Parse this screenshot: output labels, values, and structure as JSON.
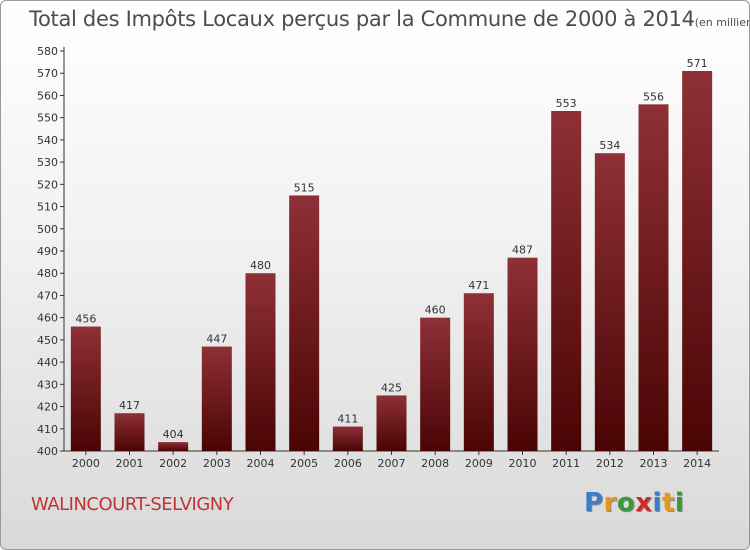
{
  "title": "Total des Impôts Locaux perçus par la Commune de 2000 à 2014",
  "title_unit": "(en milliers d'€)",
  "commune": "WALINCOURT-SELVIGNY",
  "logo": {
    "letters": [
      "P",
      "r",
      "o",
      "x",
      "i",
      "t",
      "i"
    ],
    "colors": [
      "#3a7fc1",
      "#e39a1c",
      "#3a9a3a",
      "#cc2b2b",
      "#3a7fc1",
      "#e39a1c",
      "#3a9a3a"
    ]
  },
  "chart_data": {
    "type": "bar",
    "title": "Total des Impôts Locaux perçus par la Commune de 2000 à 2014",
    "categories": [
      "2000",
      "2001",
      "2002",
      "2003",
      "2004",
      "2005",
      "2006",
      "2007",
      "2008",
      "2009",
      "2010",
      "2011",
      "2012",
      "2013",
      "2014"
    ],
    "values": [
      456,
      417,
      404,
      447,
      480,
      515,
      411,
      425,
      460,
      471,
      487,
      553,
      534,
      556,
      571
    ],
    "ylim": [
      400,
      580
    ],
    "yticks": [
      400,
      410,
      420,
      430,
      440,
      450,
      460,
      470,
      480,
      490,
      500,
      510,
      520,
      530,
      540,
      550,
      560,
      570,
      580
    ],
    "grid": false,
    "bar_color_light": "#8e3038",
    "bar_color_dark": "#4a0404"
  }
}
